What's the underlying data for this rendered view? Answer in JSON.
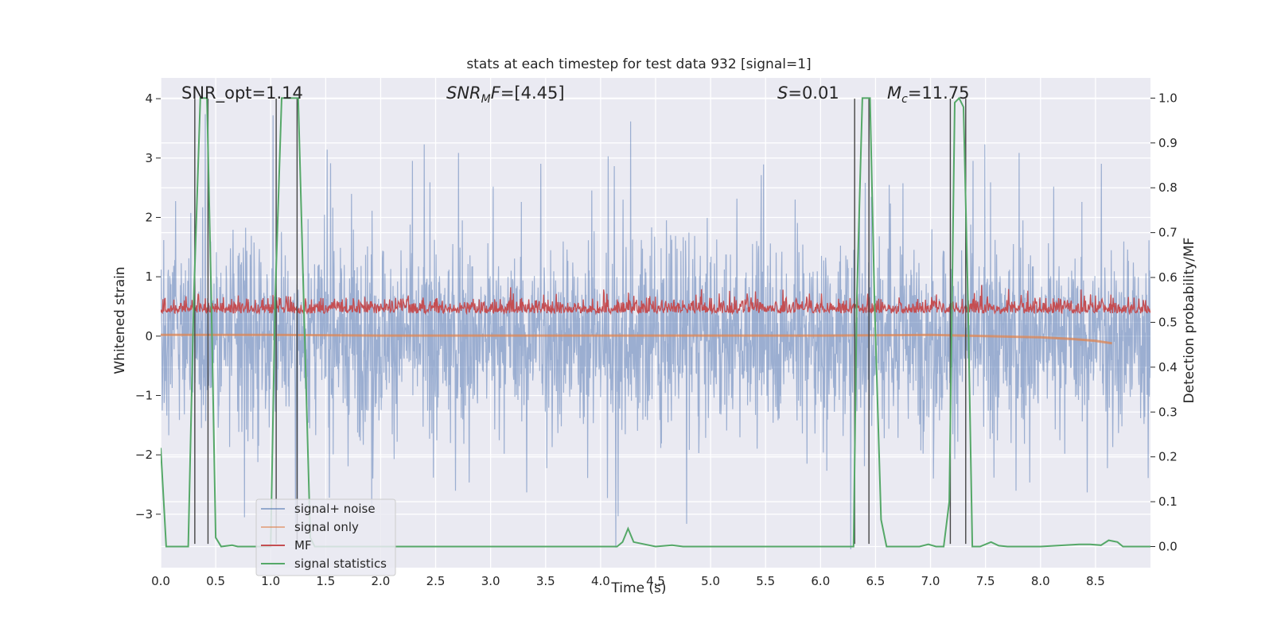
{
  "chart_data": {
    "type": "line",
    "title": "stats at each timestep for test data 932 [signal=1]",
    "xlabel": "Time (s)",
    "ylabel_left": "Whitened strain",
    "ylabel_right": "Detection probability/MF",
    "xlim": [
      0,
      9.0
    ],
    "ylim_left": [
      -3.9,
      4.35
    ],
    "ylim_right": [
      -0.047,
      1.045
    ],
    "x_ticks": [
      "0.0",
      "0.5",
      "1.0",
      "1.5",
      "2.0",
      "2.5",
      "3.0",
      "3.5",
      "4.0",
      "4.5",
      "5.0",
      "5.5",
      "6.0",
      "6.5",
      "7.0",
      "7.5",
      "8.0",
      "8.5"
    ],
    "y_ticks_left": [
      "−3",
      "−2",
      "−1",
      "0",
      "1",
      "2",
      "3",
      "4"
    ],
    "y_ticks_left_values": [
      -3,
      -2,
      -1,
      0,
      1,
      2,
      3,
      4
    ],
    "y_ticks_right": [
      "0.0",
      "0.1",
      "0.2",
      "0.3",
      "0.4",
      "0.5",
      "0.6",
      "0.7",
      "0.8",
      "0.9",
      "1.0"
    ],
    "y_ticks_right_values": [
      0,
      0.1,
      0.2,
      0.3,
      0.4,
      0.5,
      0.6,
      0.7,
      0.8,
      0.9,
      1.0
    ],
    "grid": true,
    "legend_position": "lower-left",
    "annotations": {
      "snr_opt": "SNR_opt=1.14",
      "snr_mf_base": "SNR",
      "snr_mf_sub": "M",
      "snr_mf_rest": "F=[4.45]",
      "s_var": "S",
      "s_rest": "=0.01",
      "mc_base": "M",
      "mc_sub": "c",
      "mc_rest": "=11.75"
    },
    "vertical_lines_x": [
      0.31,
      0.43,
      1.05,
      1.24,
      6.31,
      6.44,
      7.18,
      7.32
    ],
    "series": [
      {
        "name": "signal+ noise",
        "color": "#4c72b0",
        "axis": "left",
        "description_range": [
          -3.6,
          4.0
        ]
      },
      {
        "name": "signal only",
        "color": "#dd8452",
        "axis": "left",
        "x": [
          0,
          1,
          2,
          3,
          4,
          5,
          6,
          7,
          7.5,
          8.0,
          8.3,
          8.5,
          8.65
        ],
        "y": [
          0.02,
          0.02,
          0.01,
          0.01,
          0.01,
          0.01,
          0.01,
          0.02,
          0.0,
          -0.02,
          -0.05,
          -0.08,
          -0.12
        ]
      },
      {
        "name": "MF",
        "color": "#c44e52",
        "axis": "right",
        "level_range": [
          0.49,
          0.6
        ]
      },
      {
        "name": "signal statistics",
        "color": "#55a868",
        "axis": "right",
        "x": [
          0.0,
          0.05,
          0.25,
          0.3,
          0.36,
          0.42,
          0.46,
          0.5,
          0.55,
          0.65,
          0.7,
          1.0,
          1.04,
          1.1,
          1.15,
          1.25,
          1.3,
          1.36,
          1.4,
          4.15,
          4.2,
          4.25,
          4.3,
          4.5,
          4.65,
          4.75,
          6.3,
          6.33,
          6.38,
          6.45,
          6.49,
          6.55,
          6.6,
          6.9,
          6.98,
          7.05,
          7.12,
          7.17,
          7.22,
          7.26,
          7.3,
          7.34,
          7.38,
          7.45,
          7.55,
          7.62,
          7.7,
          7.8,
          8.0,
          8.35,
          8.45,
          8.55,
          8.62,
          8.7,
          8.75,
          9.0
        ],
        "y": [
          0.22,
          0.0,
          0.0,
          0.55,
          1.0,
          1.0,
          0.55,
          0.02,
          0.0,
          0.003,
          0.0,
          0.0,
          0.55,
          1.0,
          1.0,
          1.0,
          0.55,
          0.02,
          0.0,
          0.0,
          0.01,
          0.04,
          0.01,
          0.0,
          0.003,
          0.0,
          0.0,
          0.55,
          1.0,
          1.0,
          0.55,
          0.06,
          0.0,
          0.0,
          0.005,
          0.0,
          0.0,
          0.1,
          0.99,
          1.0,
          0.98,
          0.55,
          0.0,
          0.0,
          0.01,
          0.002,
          0.0,
          0.0,
          0.0,
          0.005,
          0.005,
          0.003,
          0.014,
          0.01,
          0.0,
          0.0
        ]
      }
    ]
  }
}
